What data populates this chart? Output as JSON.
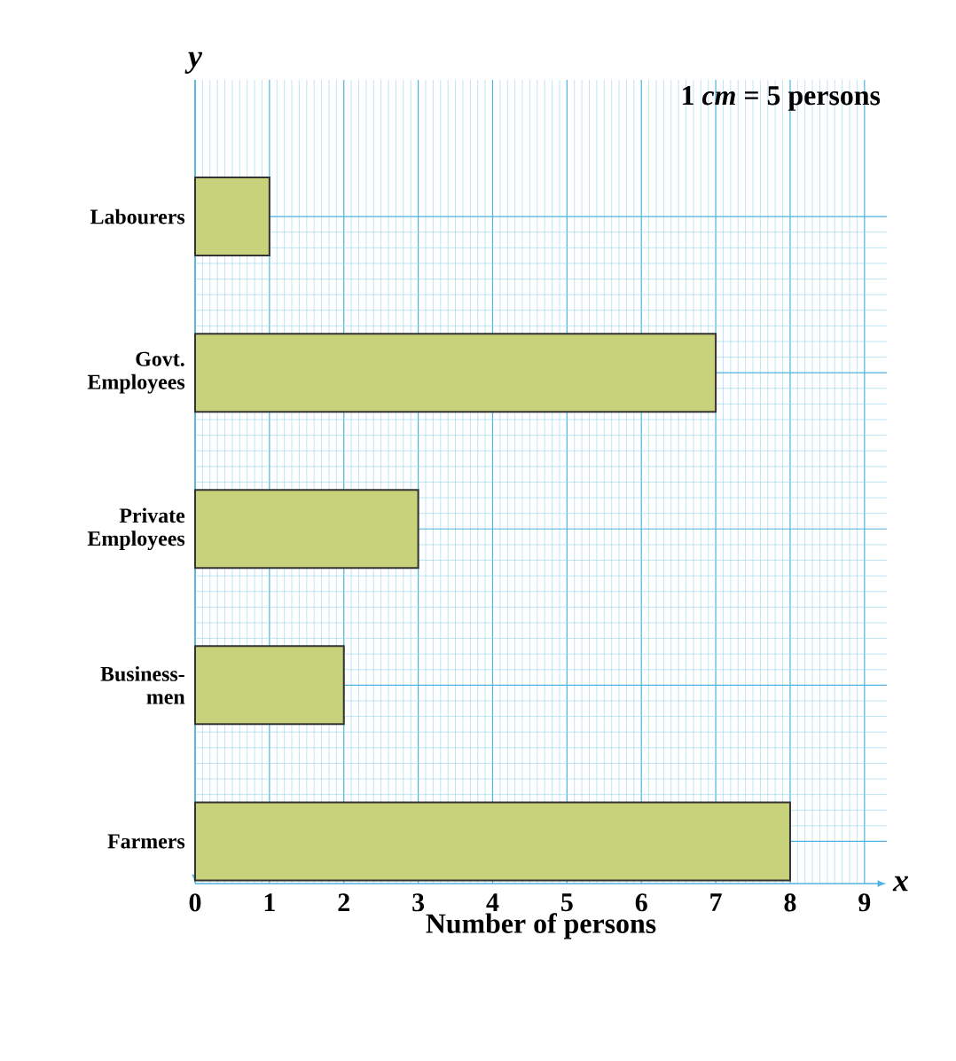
{
  "chart_data": {
    "type": "bar",
    "orientation": "horizontal",
    "xlabel": "Number of persons",
    "categories": [
      "Labourers",
      "Govt. Employees",
      "Private Employees",
      "Business-men",
      "Farmers"
    ],
    "values": [
      1,
      7,
      3,
      2,
      8
    ],
    "color": "#c8d27a",
    "xlim": [
      0,
      9.3
    ],
    "xticks": [
      0,
      1,
      2,
      3,
      4,
      5,
      6,
      7,
      8,
      9
    ],
    "grid": true,
    "annotations": [
      "1 *cm* = 5 persons",
      "x",
      "y"
    ]
  }
}
